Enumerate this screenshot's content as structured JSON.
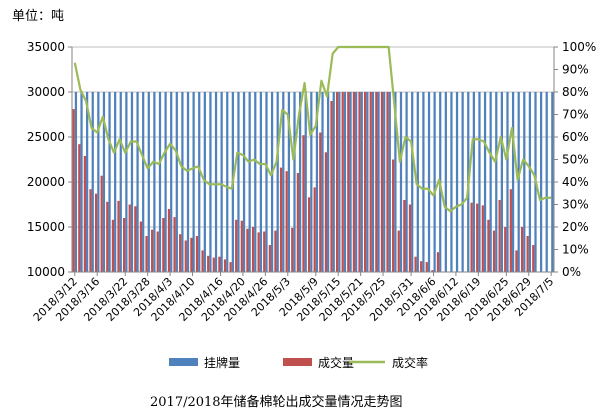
{
  "chart_data": {
    "type": "bar",
    "title": "2017/2018年储备棉轮出成交量情况走势图",
    "unit_label": "单位：吨",
    "ylim": [
      10000,
      35000
    ],
    "yticks": [
      10000,
      15000,
      20000,
      25000,
      30000,
      35000
    ],
    "y2lim": [
      0,
      100
    ],
    "y2ticks": [
      "0%",
      "10%",
      "20%",
      "30%",
      "40%",
      "50%",
      "60%",
      "70%",
      "80%",
      "90%",
      "100%"
    ],
    "grid": true,
    "legend_position": "bottom",
    "colors": {
      "listed": "#4f81bd",
      "deal": "#c0504d",
      "rate": "#9bbb59"
    },
    "xtick_labels": [
      "2018/3/12",
      "2018/3/16",
      "2018/3/22",
      "2018/3/28",
      "2018/4/3",
      "2018/4/10",
      "2018/4/16",
      "2018/4/20",
      "2018/4/26",
      "2018/5/3",
      "2018/5/9",
      "2018/5/15",
      "2018/5/21",
      "2018/5/25",
      "2018/5/31",
      "2018/6/6",
      "2018/6/12",
      "2018/6/19",
      "2018/6/25",
      "2018/6/29",
      "2018/7/5"
    ],
    "series": [
      {
        "name": "挂牌量",
        "kind": "bar",
        "axis": "left",
        "values": [
          30000,
          30000,
          30000,
          30000,
          30000,
          30000,
          30000,
          30000,
          30000,
          30000,
          30000,
          30000,
          30000,
          30000,
          30000,
          30000,
          30000,
          30000,
          30000,
          30000,
          30000,
          30000,
          30000,
          30000,
          30000,
          30000,
          30000,
          30000,
          30000,
          30000,
          30000,
          30000,
          30000,
          30000,
          30000,
          30000,
          30000,
          30000,
          30000,
          30000,
          30000,
          30000,
          30000,
          30000,
          30000,
          30000,
          30000,
          30000,
          30000,
          30000,
          30000,
          30000,
          30000,
          30000,
          30000,
          30000,
          30000,
          30000,
          30000,
          30000,
          30000,
          30000,
          30000,
          30000,
          30000,
          30000,
          30000,
          30000,
          30000,
          30000,
          30000,
          30000,
          30000,
          30000,
          30000,
          30000,
          30000,
          30000,
          30000,
          30000,
          30000,
          30000,
          30000,
          30000,
          30000,
          30000
        ]
      },
      {
        "name": "成交量",
        "kind": "bar",
        "axis": "left",
        "values": [
          28100,
          24200,
          22900,
          19200,
          18700,
          20700,
          17800,
          15800,
          17900,
          16000,
          17500,
          17300,
          15600,
          14000,
          14700,
          14500,
          16000,
          17000,
          16100,
          14200,
          13500,
          13800,
          14000,
          12400,
          11800,
          11600,
          11700,
          11400,
          11100,
          15800,
          15700,
          14800,
          15000,
          14400,
          14500,
          13000,
          14600,
          21600,
          21200,
          14900,
          21000,
          25200,
          18300,
          19400,
          25500,
          23300,
          29000,
          30000,
          30000,
          30000,
          30000,
          30000,
          30000,
          30000,
          30000,
          30000,
          30000,
          22500,
          14600,
          18000,
          17500,
          11700,
          11200,
          11100,
          10200,
          12200,
          8800,
          8200,
          8600,
          8900,
          10000,
          17700,
          17600,
          17400,
          15800,
          14600,
          18000,
          15000,
          19200,
          12400,
          15000,
          14000,
          13000,
          9500,
          9800,
          10000
        ]
      },
      {
        "name": "成交率",
        "kind": "line",
        "axis": "right",
        "values": [
          93,
          81,
          76,
          64,
          62,
          69,
          59,
          53,
          59,
          53,
          58,
          58,
          52,
          46,
          49,
          48,
          53,
          57,
          54,
          47,
          45,
          46,
          47,
          41,
          39,
          39,
          39,
          38,
          37,
          53,
          52,
          49,
          50,
          48,
          48,
          43,
          49,
          72,
          70,
          50,
          70,
          84,
          61,
          65,
          85,
          78,
          97,
          100,
          100,
          100,
          100,
          100,
          100,
          100,
          100,
          100,
          100,
          75,
          49,
          60,
          58,
          39,
          37,
          37,
          34,
          41,
          29,
          27,
          29,
          30,
          33,
          59,
          59,
          58,
          53,
          49,
          60,
          50,
          64,
          41,
          50,
          47,
          43,
          32,
          33,
          33
        ]
      }
    ]
  }
}
